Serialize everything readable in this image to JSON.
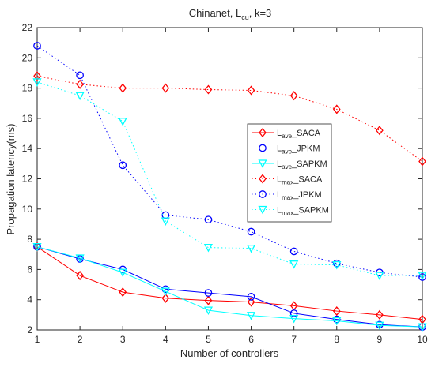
{
  "chart_data": {
    "type": "line",
    "title": "Chinanet, L",
    "title_sub": "cu",
    "title_suffix": ", k=3",
    "xlabel": "Number of controllers",
    "ylabel": "Propagation latency(ms)",
    "xlim": [
      1,
      10
    ],
    "ylim": [
      2,
      22
    ],
    "xticks": [
      1,
      2,
      3,
      4,
      5,
      6,
      7,
      8,
      9,
      10
    ],
    "yticks": [
      2,
      4,
      6,
      8,
      10,
      12,
      14,
      16,
      18,
      20,
      22
    ],
    "grid": false,
    "legend_placement": "right",
    "x": [
      1,
      2,
      3,
      4,
      5,
      6,
      7,
      8,
      9,
      10
    ],
    "series": [
      {
        "name": "L",
        "sub": "ave",
        "suffix": "_SACA",
        "color": "#ff0000",
        "marker": "diamond",
        "line": "solid",
        "values": [
          7.5,
          5.6,
          4.5,
          4.1,
          3.95,
          3.85,
          3.6,
          3.25,
          3.0,
          2.7
        ]
      },
      {
        "name": "L",
        "sub": "ave",
        "suffix": "_JPKM",
        "color": "#0000ff",
        "marker": "circle",
        "line": "solid",
        "values": [
          7.5,
          6.7,
          6.0,
          4.7,
          4.45,
          4.2,
          3.1,
          2.7,
          2.35,
          2.2
        ]
      },
      {
        "name": "L",
        "sub": "ave",
        "suffix": "_SAPKM",
        "color": "#00ffff",
        "marker": "triangle",
        "line": "solid",
        "values": [
          7.5,
          6.75,
          5.8,
          4.55,
          3.3,
          2.95,
          2.75,
          2.6,
          2.3,
          2.2
        ]
      },
      {
        "name": "L",
        "sub": "max",
        "suffix": "_SACA",
        "color": "#ff0000",
        "marker": "diamond",
        "line": "dotted",
        "values": [
          18.8,
          18.25,
          18.0,
          18.0,
          17.9,
          17.85,
          17.5,
          16.6,
          15.2,
          13.15
        ]
      },
      {
        "name": "L",
        "sub": "max",
        "suffix": "_JPKM",
        "color": "#0000ff",
        "marker": "circle",
        "line": "dotted",
        "values": [
          20.8,
          18.85,
          12.9,
          9.6,
          9.3,
          8.5,
          7.2,
          6.4,
          5.8,
          5.5
        ]
      },
      {
        "name": "L",
        "sub": "max",
        "suffix": "_SAPKM",
        "color": "#00ffff",
        "marker": "triangle",
        "line": "dotted",
        "values": [
          18.4,
          17.5,
          15.8,
          9.2,
          7.45,
          7.4,
          6.35,
          6.3,
          5.6,
          5.6
        ]
      }
    ]
  }
}
